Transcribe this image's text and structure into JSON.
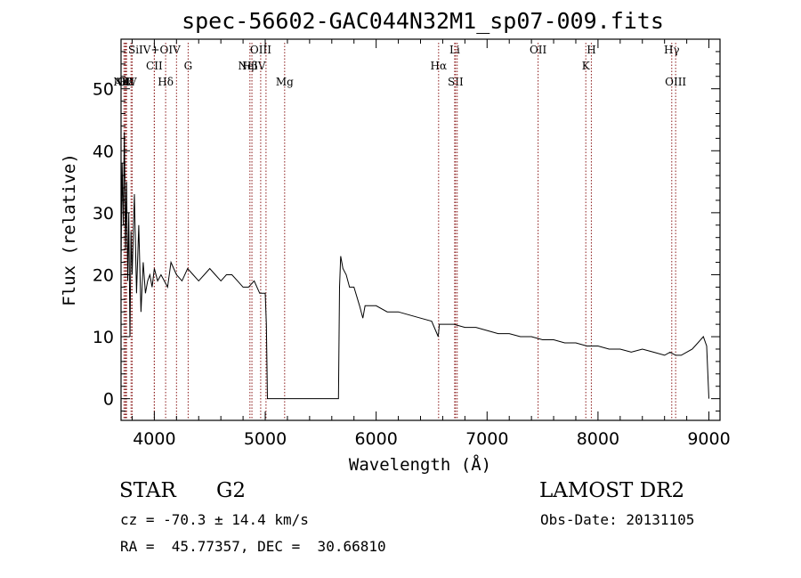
{
  "chart_data": {
    "type": "line",
    "title": "spec-56602-GAC044N32M1_sp07-009.fits",
    "xlabel": "Wavelength (Å)",
    "ylabel": "Flux (relative)",
    "xlim": [
      3700,
      9100
    ],
    "ylim": [
      -3.5,
      58
    ],
    "x_ticks": [
      4000,
      5000,
      6000,
      7000,
      8000,
      9000
    ],
    "y_ticks": [
      0,
      10,
      20,
      30,
      40,
      50
    ],
    "grid": false,
    "line_color": "#000000",
    "marker_color": "#8b1a1a",
    "series": [
      {
        "x": [
          3700,
          3710,
          3720,
          3730,
          3740,
          3750,
          3760,
          3770,
          3780,
          3790,
          3800,
          3820,
          3840,
          3860,
          3880,
          3900,
          3920,
          3940,
          3960,
          3980,
          4000,
          4030,
          4060,
          4090,
          4120,
          4150,
          4200,
          4250,
          4300,
          4350,
          4400,
          4450,
          4500,
          4550,
          4600,
          4650,
          4700,
          4750,
          4800,
          4850,
          4900,
          4950,
          5000,
          5010,
          5020,
          5030,
          5100,
          5300,
          5500,
          5660,
          5670,
          5680,
          5700,
          5730,
          5760,
          5800,
          5850,
          5880,
          5900,
          5930,
          6000,
          6100,
          6200,
          6300,
          6400,
          6500,
          6560,
          6570,
          6600,
          6700,
          6800,
          6900,
          7000,
          7100,
          7200,
          7300,
          7400,
          7500,
          7600,
          7700,
          7800,
          7900,
          8000,
          8100,
          8200,
          8300,
          8400,
          8500,
          8600,
          8650,
          8700,
          8750,
          8800,
          8850,
          8900,
          8950,
          8980,
          9000
        ],
        "y": [
          22,
          38,
          28,
          43,
          24,
          35,
          19,
          30,
          10,
          27,
          20,
          33,
          17,
          28,
          14,
          22,
          17,
          19,
          20,
          18,
          21,
          19,
          20,
          19,
          18,
          22,
          20,
          19,
          21,
          20,
          19,
          20,
          21,
          20,
          19,
          20,
          20,
          19,
          18,
          18,
          19,
          17,
          17,
          12,
          0,
          0,
          0,
          0,
          0,
          0,
          18,
          23,
          21,
          20,
          18,
          18,
          15,
          13,
          15,
          15,
          15,
          14,
          14,
          13.5,
          13,
          12.5,
          10,
          12,
          12,
          12,
          11.5,
          11.5,
          11,
          10.5,
          10.5,
          10,
          10,
          9.5,
          9.5,
          9,
          9,
          8.5,
          8.5,
          8,
          8,
          7.5,
          8,
          7.5,
          7,
          7.5,
          7,
          7,
          7.5,
          8,
          9,
          10,
          8.5,
          0
        ]
      }
    ],
    "lines": [
      {
        "w": 3726,
        "label": "AlII",
        "row": 2
      },
      {
        "w": 3736,
        "label": "NeV",
        "row": 2
      },
      {
        "w": 3745,
        "label": "OII",
        "row": 2
      },
      {
        "w": 3750,
        "label": "Hε",
        "row": 2
      },
      {
        "w": 3790,
        "label": "",
        "row": 2
      },
      {
        "w": 3800,
        "label": "",
        "row": 2
      },
      {
        "w": 4000,
        "label": "CII",
        "row": 1
      },
      {
        "w": 4000,
        "label": "SiIV+OIV",
        "row": 0
      },
      {
        "w": 4102,
        "label": "Hδ",
        "row": 2
      },
      {
        "w": 4200,
        "label": "",
        "row": 2
      },
      {
        "w": 4305,
        "label": "G",
        "row": 1
      },
      {
        "w": 4862,
        "label": "Hβ",
        "row": 1
      },
      {
        "w": 4880,
        "label": "NeIV",
        "row": 1
      },
      {
        "w": 4959,
        "label": "OIII",
        "row": 0
      },
      {
        "w": 5007,
        "label": "",
        "row": 0
      },
      {
        "w": 5175,
        "label": "Mg",
        "row": 2
      },
      {
        "w": 6563,
        "label": "Hα",
        "row": 1
      },
      {
        "w": 6708,
        "label": "Li",
        "row": 0
      },
      {
        "w": 6716,
        "label": "SII",
        "row": 2
      },
      {
        "w": 6731,
        "label": "",
        "row": 2
      },
      {
        "w": 7460,
        "label": "OII",
        "row": 0
      },
      {
        "w": 7890,
        "label": "K",
        "row": 1
      },
      {
        "w": 7940,
        "label": "H",
        "row": 0
      },
      {
        "w": 8665,
        "label": "Hγ",
        "row": 0
      },
      {
        "w": 8700,
        "label": "OIII",
        "row": 2
      }
    ]
  },
  "info": {
    "object_class": "STAR",
    "subclass": "G2",
    "survey": "LAMOST DR2",
    "cz_text": "cz = -70.3 ± 14.4 km/s",
    "obs_date": "Obs-Date: 20131105",
    "coords": "RA =  45.77357, DEC =  30.66810"
  }
}
